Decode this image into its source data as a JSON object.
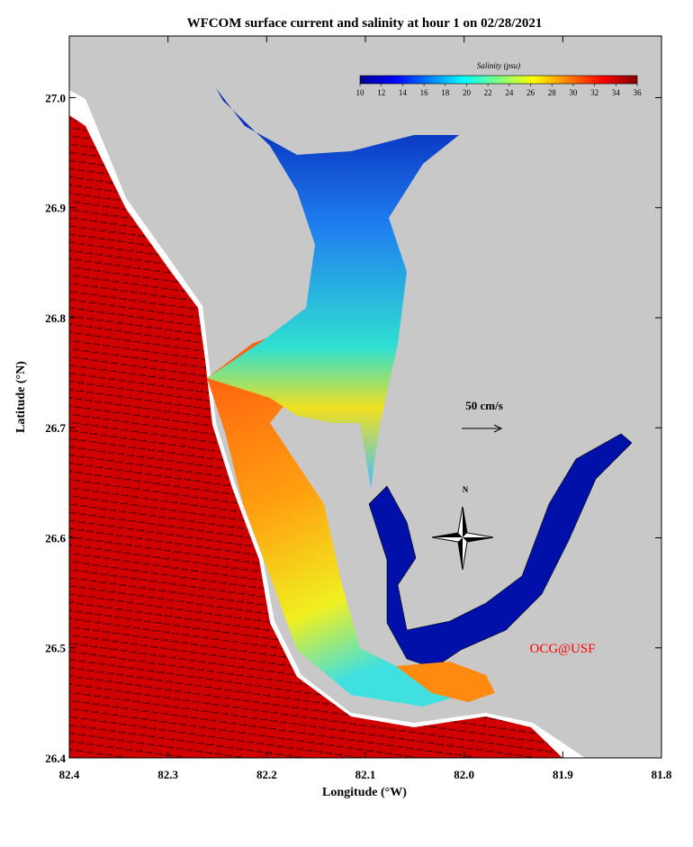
{
  "map": {
    "title": "WFCOM surface current and salinity at hour 1 on 02/28/2021",
    "x_label": "Longitude (°W)",
    "y_label": "Latitude (°N)",
    "xlim": [
      82.4,
      81.8
    ],
    "ylim": [
      26.4,
      27.056
    ],
    "xticks": [
      82.4,
      82.3,
      82.2,
      82.1,
      {
        "value": 82.0,
        "label": "82.0"
      },
      81.9,
      81.8
    ],
    "yticks": [
      26.4,
      26.5,
      26.6,
      26.7,
      26.8,
      26.9,
      {
        "value": 27.0,
        "label": "27.0"
      }
    ],
    "colorbar": {
      "title": "Salinity (psu)",
      "clim": [
        10,
        36
      ],
      "ticks": [
        10,
        12,
        14,
        16,
        18,
        20,
        22,
        24,
        26,
        28,
        30,
        32,
        34,
        36
      ]
    },
    "scale_label": "50 cm/s",
    "compass_label": "N",
    "credit": "OCG@USF"
  }
}
